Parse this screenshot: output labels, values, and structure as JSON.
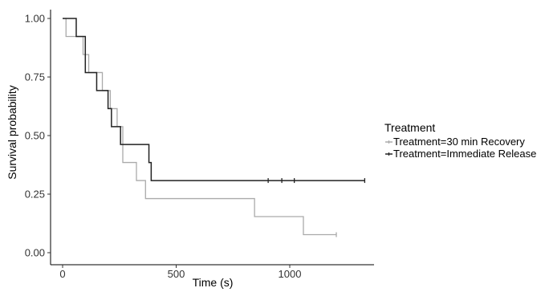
{
  "chart_data": {
    "type": "line",
    "title": "",
    "xlabel": "Time (s)",
    "ylabel": "Survival probability",
    "xlim": [
      0,
      1320
    ],
    "ylim": [
      0,
      1.0
    ],
    "x_ticks": [
      0,
      500,
      1000
    ],
    "x_tick_labels": [
      "0",
      "500",
      "1000"
    ],
    "y_ticks": [
      0,
      0.25,
      0.5,
      0.75,
      1.0
    ],
    "y_tick_labels": [
      "0.00",
      "0.25",
      "0.50",
      "0.75",
      "1.00"
    ],
    "grid": false,
    "step": true,
    "legend": {
      "title": "Treatment",
      "position": "right"
    },
    "series": [
      {
        "name": "Treatment=30 min Recovery",
        "color": "#aaaaaa",
        "points": [
          [
            0,
            1.0
          ],
          [
            15,
            0.923
          ],
          [
            90,
            0.846
          ],
          [
            115,
            0.769
          ],
          [
            175,
            0.692
          ],
          [
            210,
            0.615
          ],
          [
            240,
            0.538
          ],
          [
            265,
            0.385
          ],
          [
            325,
            0.308
          ],
          [
            365,
            0.231
          ],
          [
            845,
            0.154
          ],
          [
            1060,
            0.077
          ],
          [
            1205,
            0.077
          ]
        ],
        "censored": [
          [
            1205,
            0.077
          ]
        ]
      },
      {
        "name": "Treatment=Immediate Release",
        "color": "#222222",
        "points": [
          [
            0,
            1.0
          ],
          [
            60,
            0.923
          ],
          [
            100,
            0.769
          ],
          [
            150,
            0.692
          ],
          [
            200,
            0.615
          ],
          [
            215,
            0.538
          ],
          [
            255,
            0.462
          ],
          [
            380,
            0.385
          ],
          [
            390,
            0.308
          ],
          [
            1330,
            0.308
          ]
        ],
        "censored": [
          [
            905,
            0.308
          ],
          [
            965,
            0.308
          ],
          [
            1020,
            0.308
          ],
          [
            1330,
            0.308
          ]
        ]
      }
    ]
  }
}
